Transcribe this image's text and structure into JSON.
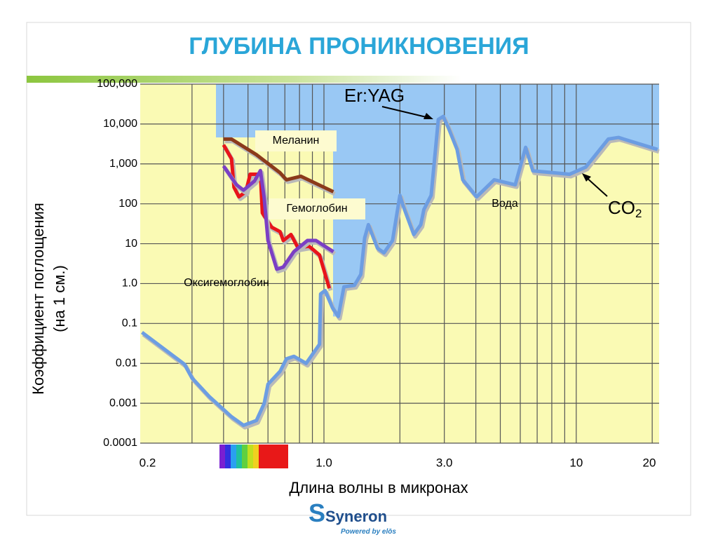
{
  "slide": {
    "title": "ГЛУБИНА ПРОНИКНОВЕНИЯ",
    "logo": {
      "brand": "Syneron",
      "tagline": "Powered by elōs"
    }
  },
  "chart_data": {
    "type": "line",
    "x_scale": "log",
    "y_scale": "log",
    "grid": true,
    "y_label": [
      "Коэффициент поглощения",
      "(на 1 см.)"
    ],
    "x_label": "Длина волны в микронах",
    "xlim": [
      0.187,
      21.3
    ],
    "ylim": [
      0.0001,
      100000
    ],
    "xticks": [
      0.2,
      {
        "value": 1,
        "label": "1.0"
      },
      {
        "value": 3,
        "label": "3.0"
      },
      10,
      20
    ],
    "xgrid_minor": [
      0.3,
      0.4,
      0.5,
      0.6,
      0.7,
      0.8,
      0.9,
      1,
      2,
      3,
      4,
      5,
      6,
      7,
      8,
      9,
      10,
      20
    ],
    "yticks": [
      {
        "value": 100000,
        "label": "100,000"
      },
      {
        "value": 10000,
        "label": "10,000"
      },
      {
        "value": 1000,
        "label": "1,000"
      },
      100,
      10,
      {
        "value": 1,
        "label": "1.0"
      },
      0.1,
      0.01,
      0.001,
      0.0001
    ],
    "series": [
      {
        "name": "Вода",
        "color": "#6c9de2",
        "x": [
          0.19,
          0.28,
          0.3,
          0.35,
          0.43,
          0.48,
          0.54,
          0.58,
          0.6,
          0.67,
          0.71,
          0.76,
          0.85,
          0.96,
          0.97,
          1.01,
          1.08,
          1.14,
          1.2,
          1.32,
          1.4,
          1.45,
          1.5,
          1.63,
          1.73,
          1.87,
          2.0,
          2.06,
          2.27,
          2.42,
          2.49,
          2.66,
          2.84,
          2.97,
          3.12,
          3.37,
          3.55,
          4.03,
          4.73,
          5.73,
          6.3,
          6.73,
          8.15,
          9.4,
          10.9,
          13.4,
          14.7,
          21
        ],
        "values": [
          0.06,
          0.0095,
          0.0043,
          0.0015,
          0.00046,
          0.00028,
          0.00037,
          0.001,
          0.003,
          0.0063,
          0.013,
          0.015,
          0.01,
          0.03,
          0.55,
          0.67,
          0.25,
          0.15,
          0.83,
          0.9,
          1.7,
          14,
          30,
          7.7,
          5.9,
          12,
          163,
          89,
          17,
          30,
          72,
          163,
          13000,
          15500,
          7800,
          2300,
          400,
          150,
          400,
          300,
          2600,
          670,
          600,
          550,
          830,
          4200,
          4600,
          2300
        ]
      },
      {
        "name": "Меланин",
        "color": "#8b3a1a",
        "x": [
          0.4,
          0.43,
          0.54,
          0.67,
          0.71,
          0.81,
          1.09
        ],
        "values": [
          4200,
          4200,
          1700,
          600,
          400,
          490,
          200
        ]
      },
      {
        "name": "Гемоглобин",
        "color": "#e8141a",
        "x": [
          0.4,
          0.43,
          0.44,
          0.46,
          0.49,
          0.51,
          0.56,
          0.57,
          0.62,
          0.67,
          0.69,
          0.74,
          0.79,
          0.87,
          0.89,
          0.96,
          1.05
        ],
        "values": [
          3000,
          1350,
          260,
          150,
          200,
          550,
          550,
          59,
          26,
          20,
          12,
          17,
          7.8,
          8.7,
          7.8,
          5.2,
          0.76
        ]
      },
      {
        "name": "Оксигемоглобин",
        "color": "#7b3fc4",
        "x": [
          0.4,
          0.45,
          0.48,
          0.53,
          0.56,
          0.58,
          0.6,
          0.65,
          0.69,
          0.76,
          0.86,
          0.93,
          1.09
        ],
        "values": [
          890,
          300,
          220,
          370,
          680,
          135,
          12,
          2.3,
          2.6,
          6.3,
          12,
          12,
          6.3
        ]
      }
    ],
    "annotations": [
      {
        "text": "Er:YAG"
      },
      {
        "text": "CO",
        "sub": "2"
      }
    ]
  }
}
